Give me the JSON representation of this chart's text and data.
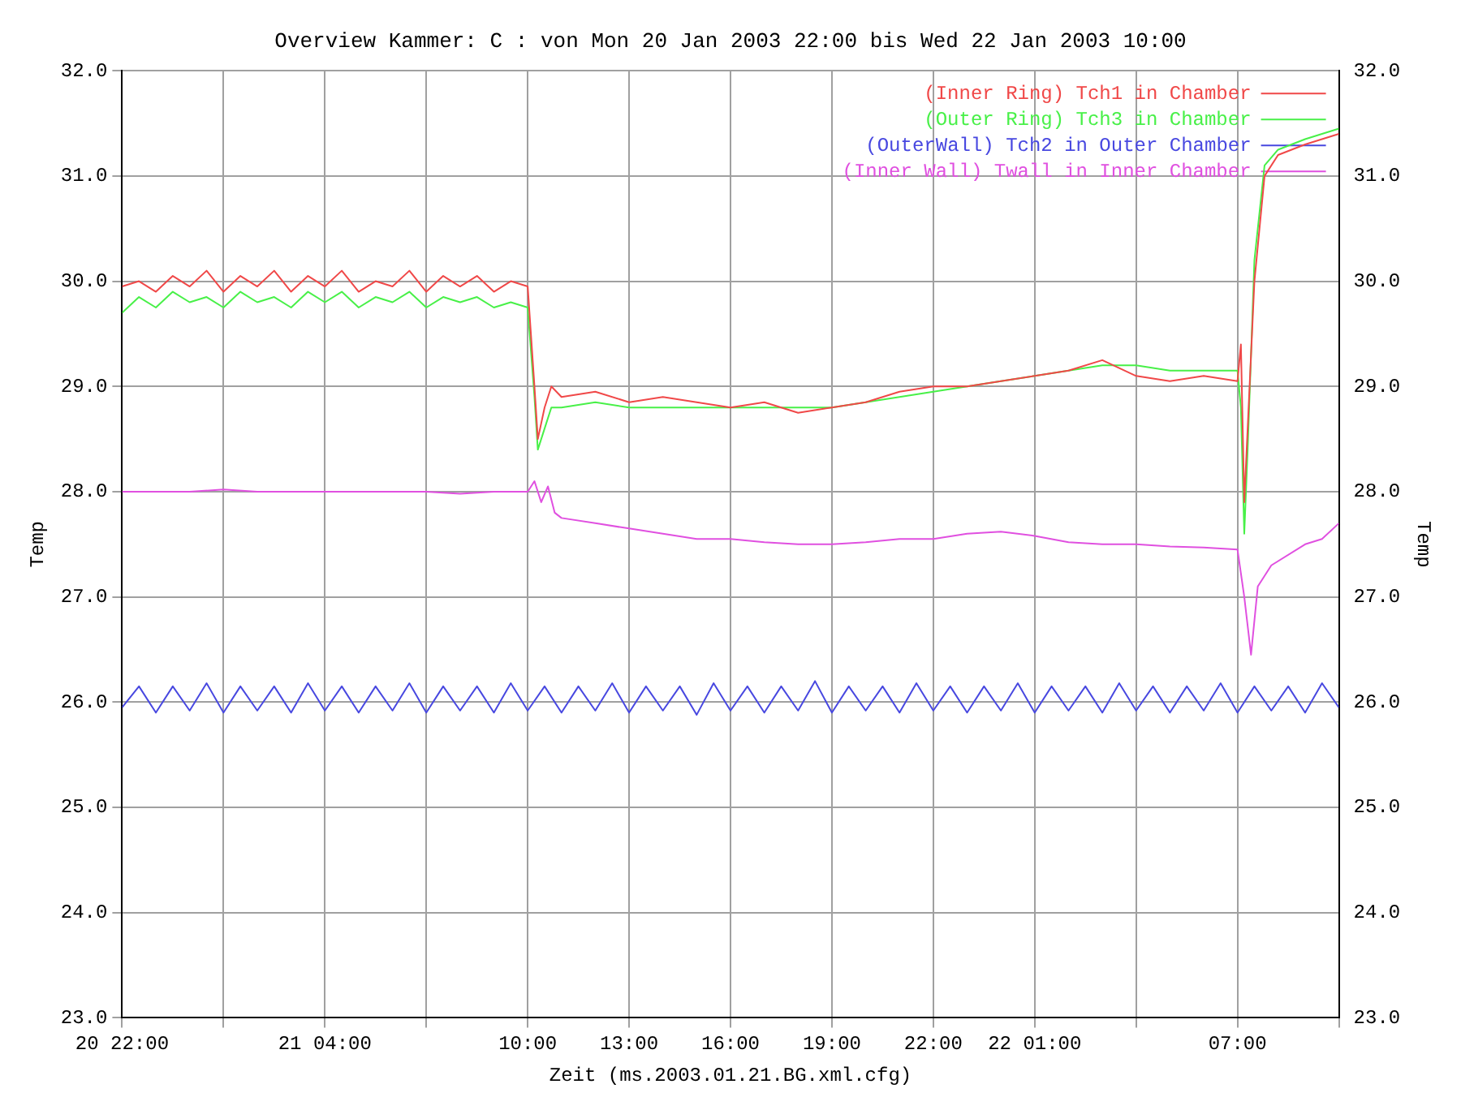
{
  "chart_data": {
    "type": "line",
    "title": "Overview Kammer: C : von Mon 20 Jan 2003 22:00 bis Wed 22 Jan 2003 10:00",
    "xlabel": "Zeit (ms.2003.01.21.BG.xml.cfg)",
    "ylabel": "Temp",
    "y2label": "Temp",
    "xlim": [
      "2003-01-20T22:00",
      "2003-01-22T10:00"
    ],
    "xticks": [
      {
        "value": "2003-01-20T22:00",
        "label": "20 22:00"
      },
      {
        "value": "2003-01-21T01:00",
        "label": null
      },
      {
        "value": "2003-01-21T04:00",
        "label": "21 04:00"
      },
      {
        "value": "2003-01-21T07:00",
        "label": null
      },
      {
        "value": "2003-01-21T10:00",
        "label": "10:00"
      },
      {
        "value": "2003-01-21T13:00",
        "label": "13:00"
      },
      {
        "value": "2003-01-21T16:00",
        "label": "16:00"
      },
      {
        "value": "2003-01-21T19:00",
        "label": "19:00"
      },
      {
        "value": "2003-01-21T22:00",
        "label": "22:00"
      },
      {
        "value": "2003-01-22T01:00",
        "label": "22 01:00"
      },
      {
        "value": "2003-01-22T04:00",
        "label": null
      },
      {
        "value": "2003-01-22T07:00",
        "label": "07:00"
      },
      {
        "value": "2003-01-22T10:00",
        "label": null
      }
    ],
    "ylim": [
      23,
      32
    ],
    "yticks": [
      {
        "value": 23,
        "label": "23.0"
      },
      {
        "value": 24,
        "label": "24.0"
      },
      {
        "value": 25,
        "label": "25.0"
      },
      {
        "value": 26,
        "label": "26.0"
      },
      {
        "value": 27,
        "label": "27.0"
      },
      {
        "value": 28,
        "label": "28.0"
      },
      {
        "value": 29,
        "label": "29.0"
      },
      {
        "value": 30,
        "label": "30.0"
      },
      {
        "value": 31,
        "label": "31.0"
      },
      {
        "value": 32,
        "label": "32.0"
      }
    ],
    "y2lim": [
      23,
      32
    ],
    "y2ticks": [
      {
        "value": 23,
        "label": "23.0"
      },
      {
        "value": 24,
        "label": "24.0"
      },
      {
        "value": 25,
        "label": "25.0"
      },
      {
        "value": 26,
        "label": "26.0"
      },
      {
        "value": 27,
        "label": "27.0"
      },
      {
        "value": 28,
        "label": "28.0"
      },
      {
        "value": 29,
        "label": "29.0"
      },
      {
        "value": 30,
        "label": "30.0"
      },
      {
        "value": 31,
        "label": "31.0"
      },
      {
        "value": 32,
        "label": "32.0"
      }
    ],
    "grid": true,
    "legend": "top right",
    "marker": "none",
    "line_style": "solid",
    "x": [
      "2003-01-20T22:00",
      "2003-01-20T22:30",
      "2003-01-20T23:00",
      "2003-01-20T23:30",
      "2003-01-21T00:00",
      "2003-01-21T00:30",
      "2003-01-21T01:00",
      "2003-01-21T01:30",
      "2003-01-21T02:00",
      "2003-01-21T02:30",
      "2003-01-21T03:00",
      "2003-01-21T03:30",
      "2003-01-21T04:00",
      "2003-01-21T04:30",
      "2003-01-21T05:00",
      "2003-01-21T05:30",
      "2003-01-21T06:00",
      "2003-01-21T06:30",
      "2003-01-21T07:00",
      "2003-01-21T07:30",
      "2003-01-21T08:00",
      "2003-01-21T08:30",
      "2003-01-21T09:00",
      "2003-01-21T09:30",
      "2003-01-21T10:00",
      "2003-01-21T10:12",
      "2003-01-21T10:18",
      "2003-01-21T10:30",
      "2003-01-21T10:42",
      "2003-01-21T11:00",
      "2003-01-21T12:00",
      "2003-01-21T13:00",
      "2003-01-21T14:00",
      "2003-01-21T15:00",
      "2003-01-21T16:00",
      "2003-01-21T17:00",
      "2003-01-21T18:00",
      "2003-01-21T19:00",
      "2003-01-21T20:00",
      "2003-01-21T21:00",
      "2003-01-21T22:00",
      "2003-01-21T23:00",
      "2003-01-22T00:00",
      "2003-01-22T01:00",
      "2003-01-22T02:00",
      "2003-01-22T03:00",
      "2003-01-22T04:00",
      "2003-01-22T05:00",
      "2003-01-22T06:00",
      "2003-01-22T07:00",
      "2003-01-22T07:06",
      "2003-01-22T07:12",
      "2003-01-22T07:18",
      "2003-01-22T07:30",
      "2003-01-22T07:48",
      "2003-01-22T08:12",
      "2003-01-22T09:00",
      "2003-01-22T09:30",
      "2003-01-22T10:00"
    ],
    "series": [
      {
        "name": "(Inner Ring) Tch1 in Chamber",
        "color": "#f04848",
        "values": [
          29.95,
          30.0,
          29.9,
          30.05,
          29.95,
          30.1,
          29.9,
          30.05,
          29.95,
          30.1,
          29.9,
          30.05,
          29.95,
          30.1,
          29.9,
          30.0,
          29.95,
          30.1,
          29.9,
          30.05,
          29.95,
          30.05,
          29.9,
          30.0,
          29.95,
          29.0,
          28.5,
          28.8,
          29.0,
          28.9,
          28.95,
          28.85,
          28.9,
          28.85,
          28.8,
          28.85,
          28.75,
          28.8,
          28.85,
          28.95,
          29.0,
          29.0,
          29.05,
          29.1,
          29.15,
          29.25,
          29.1,
          29.05,
          29.1,
          29.05,
          29.4,
          27.9,
          28.6,
          30.0,
          31.0,
          31.2,
          31.3,
          31.35,
          31.4
        ]
      },
      {
        "name": "(Outer Ring) Tch3 in Chamber",
        "color": "#48f048",
        "values": [
          29.7,
          29.85,
          29.75,
          29.9,
          29.8,
          29.85,
          29.75,
          29.9,
          29.8,
          29.85,
          29.75,
          29.9,
          29.8,
          29.9,
          29.75,
          29.85,
          29.8,
          29.9,
          29.75,
          29.85,
          29.8,
          29.85,
          29.75,
          29.8,
          29.75,
          28.9,
          28.4,
          28.6,
          28.8,
          28.8,
          28.85,
          28.8,
          28.8,
          28.8,
          28.8,
          28.8,
          28.8,
          28.8,
          28.85,
          28.9,
          28.95,
          29.0,
          29.05,
          29.1,
          29.15,
          29.2,
          29.2,
          29.15,
          29.15,
          29.15,
          28.8,
          27.6,
          28.4,
          30.2,
          31.1,
          31.25,
          31.35,
          31.4,
          31.45
        ]
      },
      {
        "name": "(OuterWall) Tch2 in Outer Chamber",
        "color": "#4848e0",
        "x": [
          "2003-01-20T22:00",
          "2003-01-20T22:30",
          "2003-01-20T23:00",
          "2003-01-20T23:30",
          "2003-01-21T00:00",
          "2003-01-21T00:30",
          "2003-01-21T01:00",
          "2003-01-21T01:30",
          "2003-01-21T02:00",
          "2003-01-21T02:30",
          "2003-01-21T03:00",
          "2003-01-21T03:30",
          "2003-01-21T04:00",
          "2003-01-21T04:30",
          "2003-01-21T05:00",
          "2003-01-21T05:30",
          "2003-01-21T06:00",
          "2003-01-21T06:30",
          "2003-01-21T07:00",
          "2003-01-21T07:30",
          "2003-01-21T08:00",
          "2003-01-21T08:30",
          "2003-01-21T09:00",
          "2003-01-21T09:30",
          "2003-01-21T10:00",
          "2003-01-21T10:30",
          "2003-01-21T11:00",
          "2003-01-21T11:30",
          "2003-01-21T12:00",
          "2003-01-21T12:30",
          "2003-01-21T13:00",
          "2003-01-21T13:30",
          "2003-01-21T14:00",
          "2003-01-21T14:30",
          "2003-01-21T15:00",
          "2003-01-21T15:30",
          "2003-01-21T16:00",
          "2003-01-21T16:30",
          "2003-01-21T17:00",
          "2003-01-21T17:30",
          "2003-01-21T18:00",
          "2003-01-21T18:30",
          "2003-01-21T19:00",
          "2003-01-21T19:30",
          "2003-01-21T20:00",
          "2003-01-21T20:30",
          "2003-01-21T21:00",
          "2003-01-21T21:30",
          "2003-01-21T22:00",
          "2003-01-21T22:30",
          "2003-01-21T23:00",
          "2003-01-21T23:30",
          "2003-01-22T00:00",
          "2003-01-22T00:30",
          "2003-01-22T01:00",
          "2003-01-22T01:30",
          "2003-01-22T02:00",
          "2003-01-22T02:30",
          "2003-01-22T03:00",
          "2003-01-22T03:30",
          "2003-01-22T04:00",
          "2003-01-22T04:30",
          "2003-01-22T05:00",
          "2003-01-22T05:30",
          "2003-01-22T06:00",
          "2003-01-22T06:30",
          "2003-01-22T07:00",
          "2003-01-22T07:30",
          "2003-01-22T08:00",
          "2003-01-22T08:30",
          "2003-01-22T09:00",
          "2003-01-22T09:30",
          "2003-01-22T10:00"
        ],
        "values": [
          25.95,
          26.15,
          25.9,
          26.15,
          25.92,
          26.18,
          25.9,
          26.15,
          25.92,
          26.15,
          25.9,
          26.18,
          25.92,
          26.15,
          25.9,
          26.15,
          25.92,
          26.18,
          25.9,
          26.15,
          25.92,
          26.15,
          25.9,
          26.18,
          25.92,
          26.15,
          25.9,
          26.15,
          25.92,
          26.18,
          25.9,
          26.15,
          25.92,
          26.15,
          25.88,
          26.18,
          25.92,
          26.15,
          25.9,
          26.15,
          25.92,
          26.2,
          25.9,
          26.15,
          25.92,
          26.15,
          25.9,
          26.18,
          25.92,
          26.15,
          25.9,
          26.15,
          25.92,
          26.18,
          25.9,
          26.15,
          25.92,
          26.15,
          25.9,
          26.18,
          25.92,
          26.15,
          25.9,
          26.15,
          25.92,
          26.18,
          25.9,
          26.15,
          25.92,
          26.15,
          25.9,
          26.18,
          25.95
        ]
      },
      {
        "name": "(Inner Wall) Twall in Inner Chamber",
        "color": "#e050e0",
        "x": [
          "2003-01-20T22:00",
          "2003-01-20T23:00",
          "2003-01-21T00:00",
          "2003-01-21T01:00",
          "2003-01-21T02:00",
          "2003-01-21T03:00",
          "2003-01-21T04:00",
          "2003-01-21T05:00",
          "2003-01-21T06:00",
          "2003-01-21T07:00",
          "2003-01-21T08:00",
          "2003-01-21T09:00",
          "2003-01-21T10:00",
          "2003-01-21T10:12",
          "2003-01-21T10:24",
          "2003-01-21T10:36",
          "2003-01-21T10:48",
          "2003-01-21T11:00",
          "2003-01-21T12:00",
          "2003-01-21T13:00",
          "2003-01-21T14:00",
          "2003-01-21T15:00",
          "2003-01-21T16:00",
          "2003-01-21T17:00",
          "2003-01-21T18:00",
          "2003-01-21T19:00",
          "2003-01-21T20:00",
          "2003-01-21T21:00",
          "2003-01-21T22:00",
          "2003-01-21T23:00",
          "2003-01-22T00:00",
          "2003-01-22T01:00",
          "2003-01-22T02:00",
          "2003-01-22T03:00",
          "2003-01-22T04:00",
          "2003-01-22T05:00",
          "2003-01-22T06:00",
          "2003-01-22T07:00",
          "2003-01-22T07:12",
          "2003-01-22T07:24",
          "2003-01-22T07:36",
          "2003-01-22T08:00",
          "2003-01-22T09:00",
          "2003-01-22T09:30",
          "2003-01-22T10:00"
        ],
        "values": [
          28.0,
          28.0,
          28.0,
          28.02,
          28.0,
          28.0,
          28.0,
          28.0,
          28.0,
          28.0,
          27.98,
          28.0,
          28.0,
          28.1,
          27.9,
          28.05,
          27.8,
          27.75,
          27.7,
          27.65,
          27.6,
          27.55,
          27.55,
          27.52,
          27.5,
          27.5,
          27.52,
          27.55,
          27.55,
          27.6,
          27.62,
          27.58,
          27.52,
          27.5,
          27.5,
          27.48,
          27.47,
          27.45,
          27.0,
          26.45,
          27.1,
          27.3,
          27.5,
          27.55,
          27.7
        ]
      }
    ]
  }
}
